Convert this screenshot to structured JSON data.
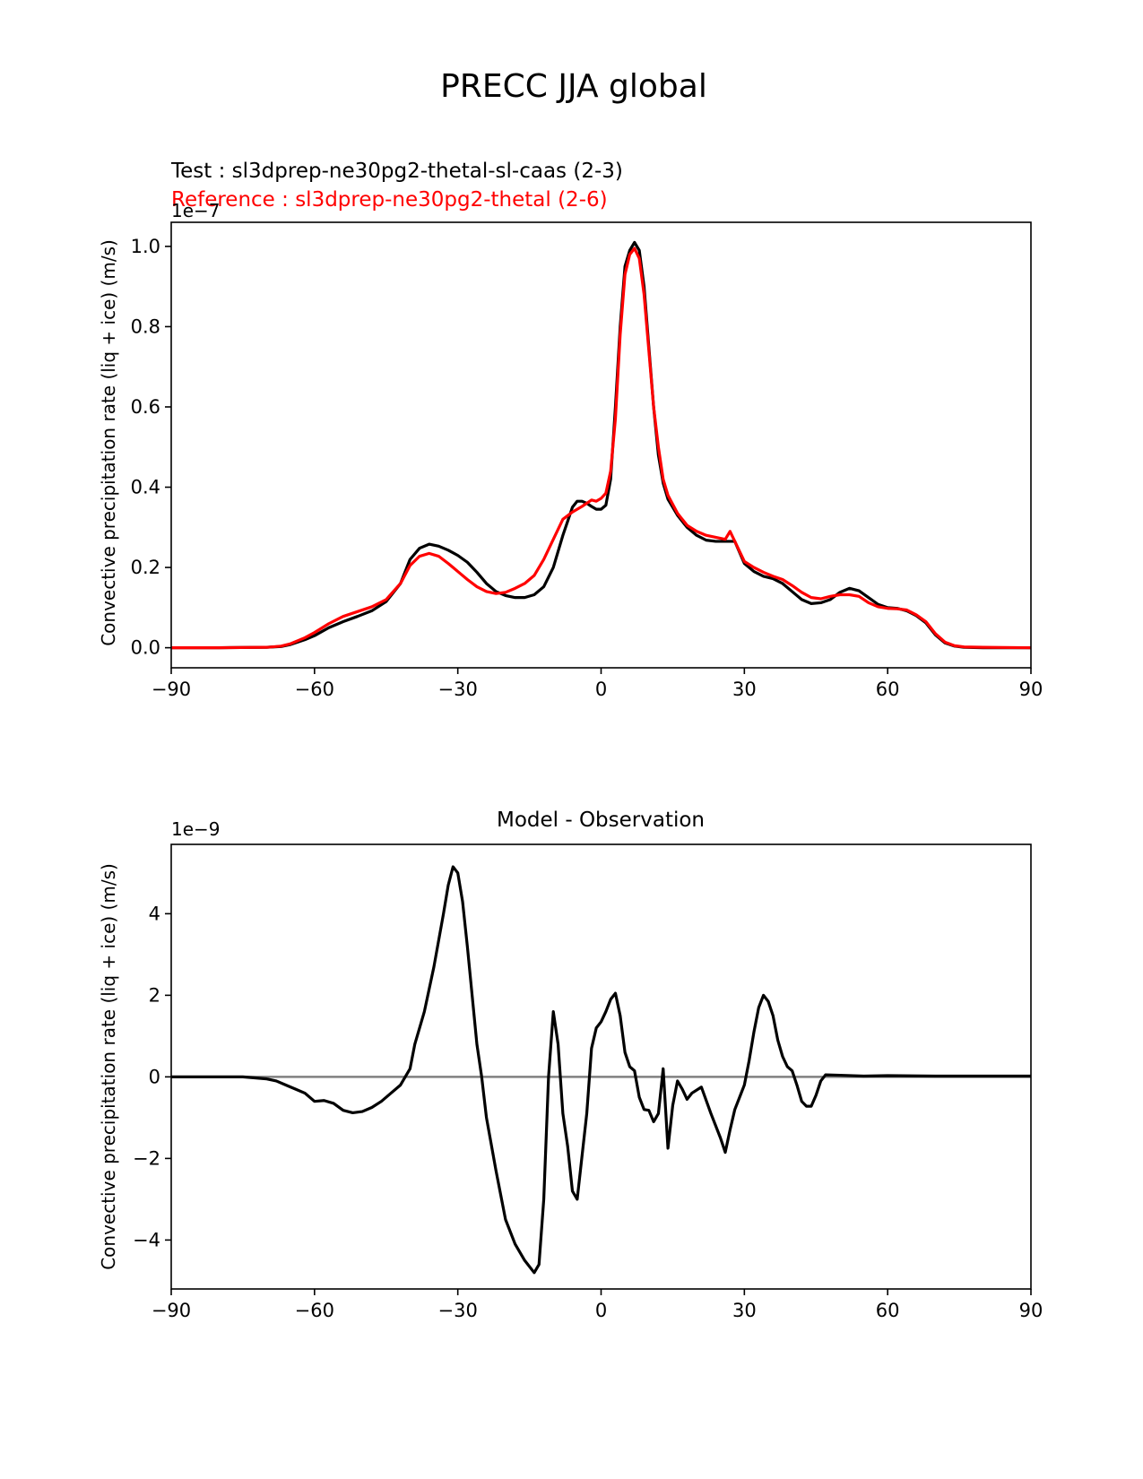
{
  "figure": {
    "title": "PRECC JJA global"
  },
  "chart_data": [
    {
      "type": "line",
      "test_label": "Test : sl3dprep-ne30pg2-thetal-sl-caas (2-3)",
      "reference_label": "Reference : sl3dprep-ne30pg2-thetal (2-6)",
      "title": "",
      "xlabel": "",
      "ylabel": "Convective precipitation rate (liq + ice) (m/s)",
      "y_multiplier_label": "1e−7",
      "xlim": [
        -90,
        90
      ],
      "ylim": [
        -0.05,
        1.06
      ],
      "x_ticks": [
        -90,
        -60,
        -30,
        0,
        30,
        60,
        90
      ],
      "x_tick_labels": [
        "−90",
        "−60",
        "−30",
        "0",
        "30",
        "60",
        "90"
      ],
      "y_ticks": [
        0.0,
        0.2,
        0.4,
        0.6,
        0.8,
        1.0
      ],
      "y_tick_labels": [
        "0.0",
        "0.2",
        "0.4",
        "0.6",
        "0.8",
        "1.0"
      ],
      "grid": false,
      "series": [
        {
          "color": "#000000",
          "points": [
            [
              -90,
              0
            ],
            [
              -80,
              0
            ],
            [
              -70,
              0.001
            ],
            [
              -67,
              0.003
            ],
            [
              -65,
              0.008
            ],
            [
              -62,
              0.02
            ],
            [
              -60,
              0.03
            ],
            [
              -57,
              0.05
            ],
            [
              -54,
              0.065
            ],
            [
              -51,
              0.078
            ],
            [
              -48,
              0.092
            ],
            [
              -45,
              0.115
            ],
            [
              -42,
              0.16
            ],
            [
              -40,
              0.22
            ],
            [
              -38,
              0.248
            ],
            [
              -36,
              0.258
            ],
            [
              -34,
              0.253
            ],
            [
              -32,
              0.243
            ],
            [
              -30,
              0.23
            ],
            [
              -28,
              0.213
            ],
            [
              -26,
              0.188
            ],
            [
              -24,
              0.16
            ],
            [
              -22,
              0.14
            ],
            [
              -20,
              0.13
            ],
            [
              -18,
              0.125
            ],
            [
              -16,
              0.125
            ],
            [
              -14,
              0.132
            ],
            [
              -12,
              0.152
            ],
            [
              -10,
              0.2
            ],
            [
              -8,
              0.28
            ],
            [
              -6,
              0.35
            ],
            [
              -5,
              0.365
            ],
            [
              -4,
              0.365
            ],
            [
              -3,
              0.36
            ],
            [
              -2,
              0.352
            ],
            [
              -1,
              0.345
            ],
            [
              0,
              0.345
            ],
            [
              1,
              0.355
            ],
            [
              2,
              0.42
            ],
            [
              3,
              0.6
            ],
            [
              4,
              0.8
            ],
            [
              5,
              0.95
            ],
            [
              6,
              0.99
            ],
            [
              7,
              1.01
            ],
            [
              8,
              0.99
            ],
            [
              9,
              0.9
            ],
            [
              10,
              0.75
            ],
            [
              11,
              0.6
            ],
            [
              12,
              0.48
            ],
            [
              13,
              0.41
            ],
            [
              14,
              0.37
            ],
            [
              16,
              0.33
            ],
            [
              18,
              0.3
            ],
            [
              20,
              0.28
            ],
            [
              22,
              0.268
            ],
            [
              24,
              0.265
            ],
            [
              26,
              0.265
            ],
            [
              28,
              0.265
            ],
            [
              30,
              0.21
            ],
            [
              32,
              0.19
            ],
            [
              34,
              0.178
            ],
            [
              36,
              0.172
            ],
            [
              38,
              0.16
            ],
            [
              40,
              0.14
            ],
            [
              42,
              0.12
            ],
            [
              44,
              0.11
            ],
            [
              46,
              0.112
            ],
            [
              48,
              0.12
            ],
            [
              50,
              0.138
            ],
            [
              52,
              0.148
            ],
            [
              54,
              0.142
            ],
            [
              56,
              0.125
            ],
            [
              58,
              0.108
            ],
            [
              60,
              0.1
            ],
            [
              62,
              0.098
            ],
            [
              64,
              0.092
            ],
            [
              66,
              0.08
            ],
            [
              68,
              0.062
            ],
            [
              70,
              0.032
            ],
            [
              72,
              0.012
            ],
            [
              74,
              0.004
            ],
            [
              76,
              0.001
            ],
            [
              80,
              0
            ],
            [
              90,
              0
            ]
          ]
        },
        {
          "color": "#ff0000",
          "points": [
            [
              -90,
              0
            ],
            [
              -80,
              0
            ],
            [
              -70,
              0.001
            ],
            [
              -67,
              0.004
            ],
            [
              -65,
              0.01
            ],
            [
              -62,
              0.025
            ],
            [
              -60,
              0.038
            ],
            [
              -57,
              0.06
            ],
            [
              -54,
              0.078
            ],
            [
              -51,
              0.09
            ],
            [
              -48,
              0.102
            ],
            [
              -45,
              0.12
            ],
            [
              -42,
              0.16
            ],
            [
              -40,
              0.205
            ],
            [
              -38,
              0.228
            ],
            [
              -36,
              0.235
            ],
            [
              -34,
              0.228
            ],
            [
              -32,
              0.21
            ],
            [
              -30,
              0.19
            ],
            [
              -28,
              0.17
            ],
            [
              -26,
              0.152
            ],
            [
              -24,
              0.14
            ],
            [
              -22,
              0.135
            ],
            [
              -20,
              0.138
            ],
            [
              -18,
              0.148
            ],
            [
              -16,
              0.16
            ],
            [
              -14,
              0.18
            ],
            [
              -12,
              0.22
            ],
            [
              -10,
              0.27
            ],
            [
              -8,
              0.32
            ],
            [
              -6,
              0.338
            ],
            [
              -4,
              0.352
            ],
            [
              -3,
              0.36
            ],
            [
              -2,
              0.368
            ],
            [
              -1,
              0.365
            ],
            [
              0,
              0.372
            ],
            [
              1,
              0.385
            ],
            [
              2,
              0.44
            ],
            [
              3,
              0.57
            ],
            [
              4,
              0.78
            ],
            [
              5,
              0.93
            ],
            [
              6,
              0.98
            ],
            [
              7,
              0.995
            ],
            [
              8,
              0.97
            ],
            [
              9,
              0.88
            ],
            [
              10,
              0.74
            ],
            [
              11,
              0.6
            ],
            [
              12,
              0.5
            ],
            [
              13,
              0.42
            ],
            [
              14,
              0.38
            ],
            [
              16,
              0.335
            ],
            [
              18,
              0.305
            ],
            [
              20,
              0.29
            ],
            [
              22,
              0.28
            ],
            [
              24,
              0.275
            ],
            [
              26,
              0.27
            ],
            [
              27,
              0.29
            ],
            [
              28,
              0.265
            ],
            [
              30,
              0.215
            ],
            [
              32,
              0.2
            ],
            [
              34,
              0.188
            ],
            [
              36,
              0.178
            ],
            [
              38,
              0.17
            ],
            [
              40,
              0.155
            ],
            [
              42,
              0.138
            ],
            [
              44,
              0.125
            ],
            [
              46,
              0.122
            ],
            [
              48,
              0.128
            ],
            [
              50,
              0.132
            ],
            [
              52,
              0.132
            ],
            [
              54,
              0.128
            ],
            [
              56,
              0.112
            ],
            [
              58,
              0.102
            ],
            [
              60,
              0.098
            ],
            [
              62,
              0.097
            ],
            [
              64,
              0.094
            ],
            [
              66,
              0.082
            ],
            [
              68,
              0.065
            ],
            [
              70,
              0.035
            ],
            [
              72,
              0.014
            ],
            [
              74,
              0.005
            ],
            [
              76,
              0.002
            ],
            [
              80,
              0.001
            ],
            [
              90,
              0
            ]
          ]
        }
      ]
    },
    {
      "type": "line",
      "title": "Model - Observation",
      "xlabel": "",
      "ylabel": "Convective precipitation rate (liq + ice) (m/s)",
      "y_multiplier_label": "1e−9",
      "xlim": [
        -90,
        90
      ],
      "ylim": [
        -5.2,
        5.7
      ],
      "x_ticks": [
        -90,
        -60,
        -30,
        0,
        30,
        60,
        90
      ],
      "x_tick_labels": [
        "−90",
        "−60",
        "−30",
        "0",
        "30",
        "60",
        "90"
      ],
      "y_ticks": [
        -4,
        -2,
        0,
        2,
        4
      ],
      "y_tick_labels": [
        "−4",
        "−2",
        "0",
        "2",
        "4"
      ],
      "grid": false,
      "zero_line_color": "#808080",
      "series": [
        {
          "color": "#000000",
          "points": [
            [
              -90,
              0
            ],
            [
              -75,
              0
            ],
            [
              -70,
              -0.05
            ],
            [
              -68,
              -0.1
            ],
            [
              -66,
              -0.2
            ],
            [
              -64,
              -0.3
            ],
            [
              -62,
              -0.4
            ],
            [
              -60,
              -0.6
            ],
            [
              -58,
              -0.58
            ],
            [
              -56,
              -0.65
            ],
            [
              -54,
              -0.82
            ],
            [
              -52,
              -0.88
            ],
            [
              -50,
              -0.85
            ],
            [
              -48,
              -0.75
            ],
            [
              -46,
              -0.6
            ],
            [
              -44,
              -0.4
            ],
            [
              -42,
              -0.2
            ],
            [
              -40,
              0.2
            ],
            [
              -39,
              0.8
            ],
            [
              -37,
              1.6
            ],
            [
              -35,
              2.7
            ],
            [
              -33,
              4.0
            ],
            [
              -32,
              4.7
            ],
            [
              -31,
              5.15
            ],
            [
              -30,
              5.0
            ],
            [
              -29,
              4.3
            ],
            [
              -28,
              3.2
            ],
            [
              -27,
              2.0
            ],
            [
              -26,
              0.8
            ],
            [
              -25,
              0
            ],
            [
              -24,
              -1.0
            ],
            [
              -22,
              -2.3
            ],
            [
              -20,
              -3.5
            ],
            [
              -18,
              -4.1
            ],
            [
              -16,
              -4.5
            ],
            [
              -14,
              -4.8
            ],
            [
              -13,
              -4.6
            ],
            [
              -12,
              -3.0
            ],
            [
              -11,
              0
            ],
            [
              -10,
              1.6
            ],
            [
              -9,
              0.8
            ],
            [
              -8,
              -0.9
            ],
            [
              -7,
              -1.7
            ],
            [
              -6,
              -2.8
            ],
            [
              -5,
              -3.0
            ],
            [
              -3,
              -0.9
            ],
            [
              -2,
              0.7
            ],
            [
              -1,
              1.2
            ],
            [
              0,
              1.35
            ],
            [
              1,
              1.6
            ],
            [
              2,
              1.9
            ],
            [
              3,
              2.05
            ],
            [
              4,
              1.5
            ],
            [
              5,
              0.6
            ],
            [
              6,
              0.25
            ],
            [
              7,
              0.15
            ],
            [
              8,
              -0.5
            ],
            [
              9,
              -0.8
            ],
            [
              10,
              -0.82
            ],
            [
              11,
              -1.1
            ],
            [
              12,
              -0.9
            ],
            [
              13,
              0.2
            ],
            [
              14,
              -1.75
            ],
            [
              15,
              -0.7
            ],
            [
              16,
              -0.1
            ],
            [
              17,
              -0.3
            ],
            [
              18,
              -0.55
            ],
            [
              19,
              -0.4
            ],
            [
              21,
              -0.25
            ],
            [
              23,
              -0.9
            ],
            [
              25,
              -1.5
            ],
            [
              26,
              -1.85
            ],
            [
              27,
              -1.3
            ],
            [
              28,
              -0.8
            ],
            [
              29,
              -0.5
            ],
            [
              30,
              -0.2
            ],
            [
              31,
              0.4
            ],
            [
              32,
              1.1
            ],
            [
              33,
              1.7
            ],
            [
              34,
              2.0
            ],
            [
              35,
              1.85
            ],
            [
              36,
              1.5
            ],
            [
              37,
              0.9
            ],
            [
              38,
              0.5
            ],
            [
              39,
              0.25
            ],
            [
              40,
              0.15
            ],
            [
              41,
              -0.2
            ],
            [
              42,
              -0.6
            ],
            [
              43,
              -0.72
            ],
            [
              44,
              -0.72
            ],
            [
              45,
              -0.45
            ],
            [
              46,
              -0.1
            ],
            [
              47,
              0.05
            ],
            [
              50,
              0.04
            ],
            [
              55,
              0.02
            ],
            [
              60,
              0.03
            ],
            [
              70,
              0.02
            ],
            [
              90,
              0.02
            ]
          ]
        }
      ]
    }
  ]
}
